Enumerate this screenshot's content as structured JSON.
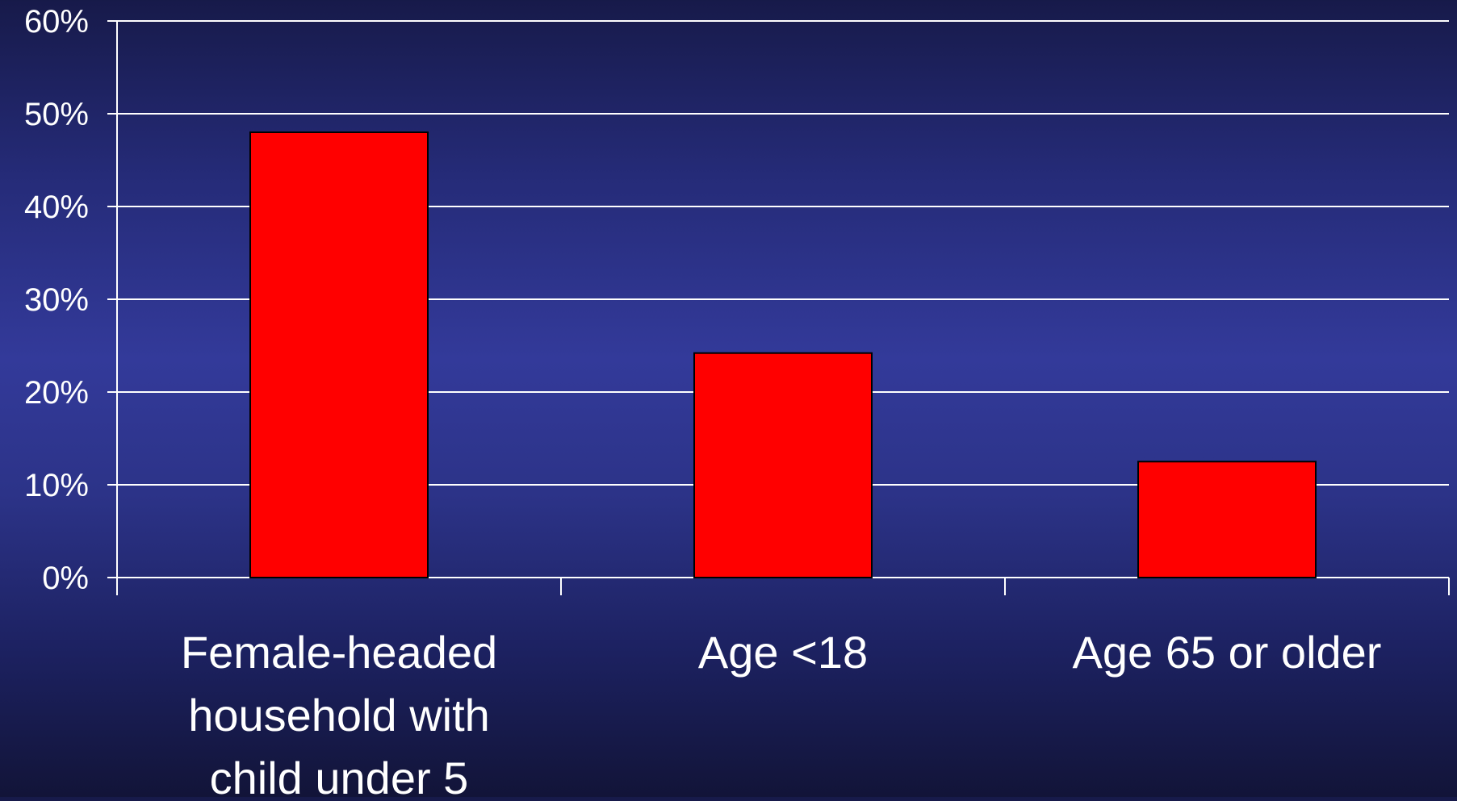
{
  "chart_data": {
    "type": "bar",
    "title": "",
    "xlabel": "",
    "ylabel": "",
    "categories": [
      [
        "Female-headed",
        "household with",
        "child under 5"
      ],
      [
        "Age <18"
      ],
      [
        "Age 65 or older"
      ]
    ],
    "values": [
      48,
      24.2,
      12.5
    ],
    "ylim": [
      0,
      60
    ],
    "yticks": [
      {
        "value": 0,
        "label": "0%"
      },
      {
        "value": 10,
        "label": "10%"
      },
      {
        "value": 20,
        "label": "20%"
      },
      {
        "value": 30,
        "label": "30%"
      },
      {
        "value": 40,
        "label": "40%"
      },
      {
        "value": 50,
        "label": "50%"
      },
      {
        "value": 60,
        "label": "60%"
      }
    ],
    "grid": true,
    "legend": "none",
    "colors": {
      "bar": "#ff0000",
      "bar_outline": "#000000",
      "grid": "#ffffff",
      "text": "#ffffff"
    }
  }
}
